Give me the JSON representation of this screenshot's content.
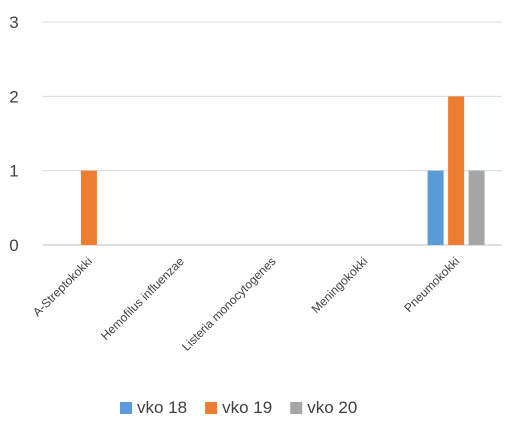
{
  "chart_data": {
    "type": "bar",
    "categories": [
      "A-Streptokokki",
      "Hemofilus influenzae",
      "Listeria monocytogenes",
      "Meningokokki",
      "Pneumokokki"
    ],
    "series": [
      {
        "name": "vko 18",
        "color": "#5b9bd5",
        "values": [
          0,
          0,
          0,
          0,
          1
        ]
      },
      {
        "name": "vko 19",
        "color": "#ed7d31",
        "values": [
          1,
          0,
          0,
          0,
          2
        ]
      },
      {
        "name": "vko 20",
        "color": "#a5a5a5",
        "values": [
          0,
          0,
          0,
          0,
          1
        ]
      }
    ],
    "ylim": [
      0,
      3
    ],
    "yticks": [
      "0",
      "1",
      "2",
      "3"
    ],
    "grid": true,
    "legend": "bottom"
  }
}
